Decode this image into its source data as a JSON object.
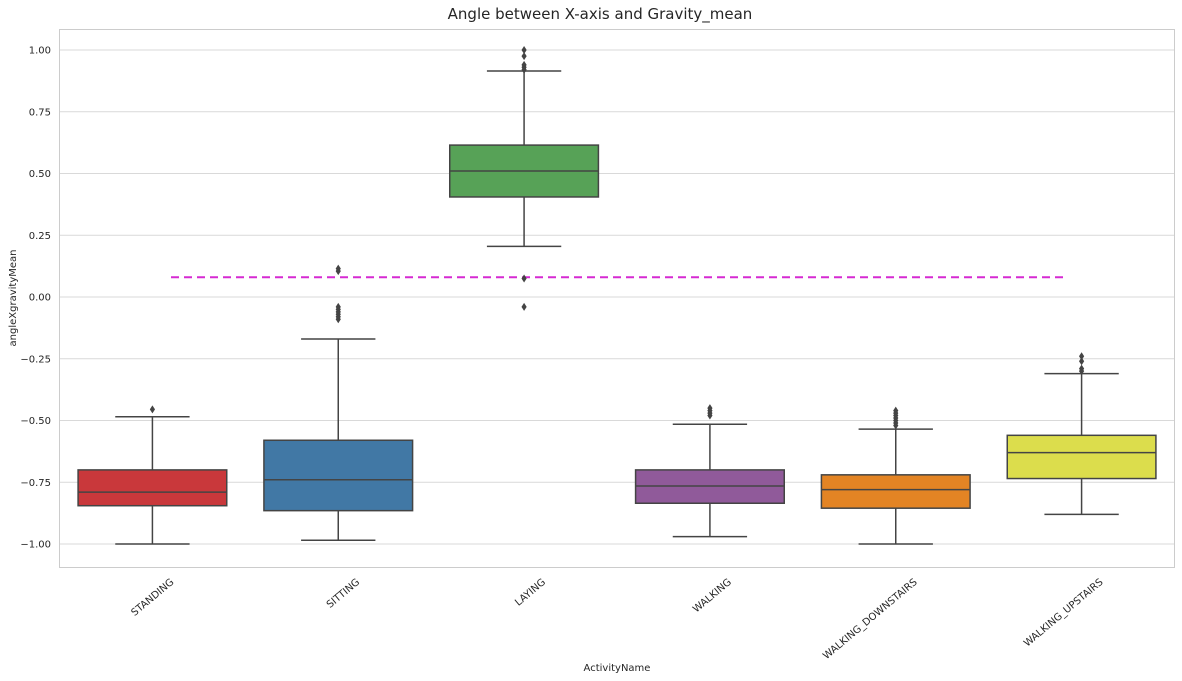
{
  "chart_data": {
    "type": "box",
    "title": "Angle between X-axis and Gravity_mean",
    "xlabel": "ActivityName",
    "ylabel": "angleXgravityMean",
    "ylim": [
      -1.1,
      1.1
    ],
    "yticks": [
      1.0,
      0.75,
      0.5,
      0.25,
      0.0,
      -0.25,
      -0.5,
      -0.75,
      -1.0
    ],
    "ytick_labels": [
      "1.00",
      "0.75",
      "0.50",
      "0.25",
      "0.00",
      "−0.25",
      "−0.50",
      "−0.75",
      "−1.00"
    ],
    "grid": true,
    "reference_line": {
      "y": 0.08,
      "color": "#d62ad2",
      "style": "dashed"
    },
    "categories": [
      "STANDING",
      "SITTING",
      "LAYING",
      "WALKING",
      "WALKING_DOWNSTAIRS",
      "WALKING_UPSTAIRS"
    ],
    "boxes": [
      {
        "category": "STANDING",
        "color": "#c9383b",
        "whisker_low": -1.0,
        "q1": -0.845,
        "median": -0.79,
        "q3": -0.7,
        "whisker_high": -0.485,
        "outliers": [
          -0.455
        ]
      },
      {
        "category": "SITTING",
        "color": "#4178a5",
        "whisker_low": -0.985,
        "q1": -0.865,
        "median": -0.74,
        "q3": -0.58,
        "whisker_high": -0.17,
        "outliers": [
          -0.04,
          -0.05,
          -0.06,
          -0.07,
          -0.08,
          -0.09,
          0.105,
          0.115
        ]
      },
      {
        "category": "LAYING",
        "color": "#57a257",
        "whisker_low": 0.205,
        "q1": 0.405,
        "median": 0.51,
        "q3": 0.615,
        "whisker_high": 0.915,
        "outliers": [
          -0.04,
          0.075,
          0.92,
          0.93,
          0.94,
          0.975,
          1.0
        ]
      },
      {
        "category": "WALKING",
        "color": "#905a9a",
        "whisker_low": -0.97,
        "q1": -0.835,
        "median": -0.765,
        "q3": -0.7,
        "whisker_high": -0.515,
        "outliers": [
          -0.45,
          -0.46,
          -0.47,
          -0.48
        ]
      },
      {
        "category": "WALKING_DOWNSTAIRS",
        "color": "#e38424",
        "whisker_low": -1.0,
        "q1": -0.855,
        "median": -0.78,
        "q3": -0.72,
        "whisker_high": -0.535,
        "outliers": [
          -0.46,
          -0.47,
          -0.48,
          -0.49,
          -0.5,
          -0.51,
          -0.52
        ]
      },
      {
        "category": "WALKING_UPSTAIRS",
        "color": "#dcdd4c",
        "whisker_low": -0.88,
        "q1": -0.735,
        "median": -0.63,
        "q3": -0.56,
        "whisker_high": -0.31,
        "outliers": [
          -0.24,
          -0.26,
          -0.29,
          -0.3
        ]
      }
    ]
  }
}
